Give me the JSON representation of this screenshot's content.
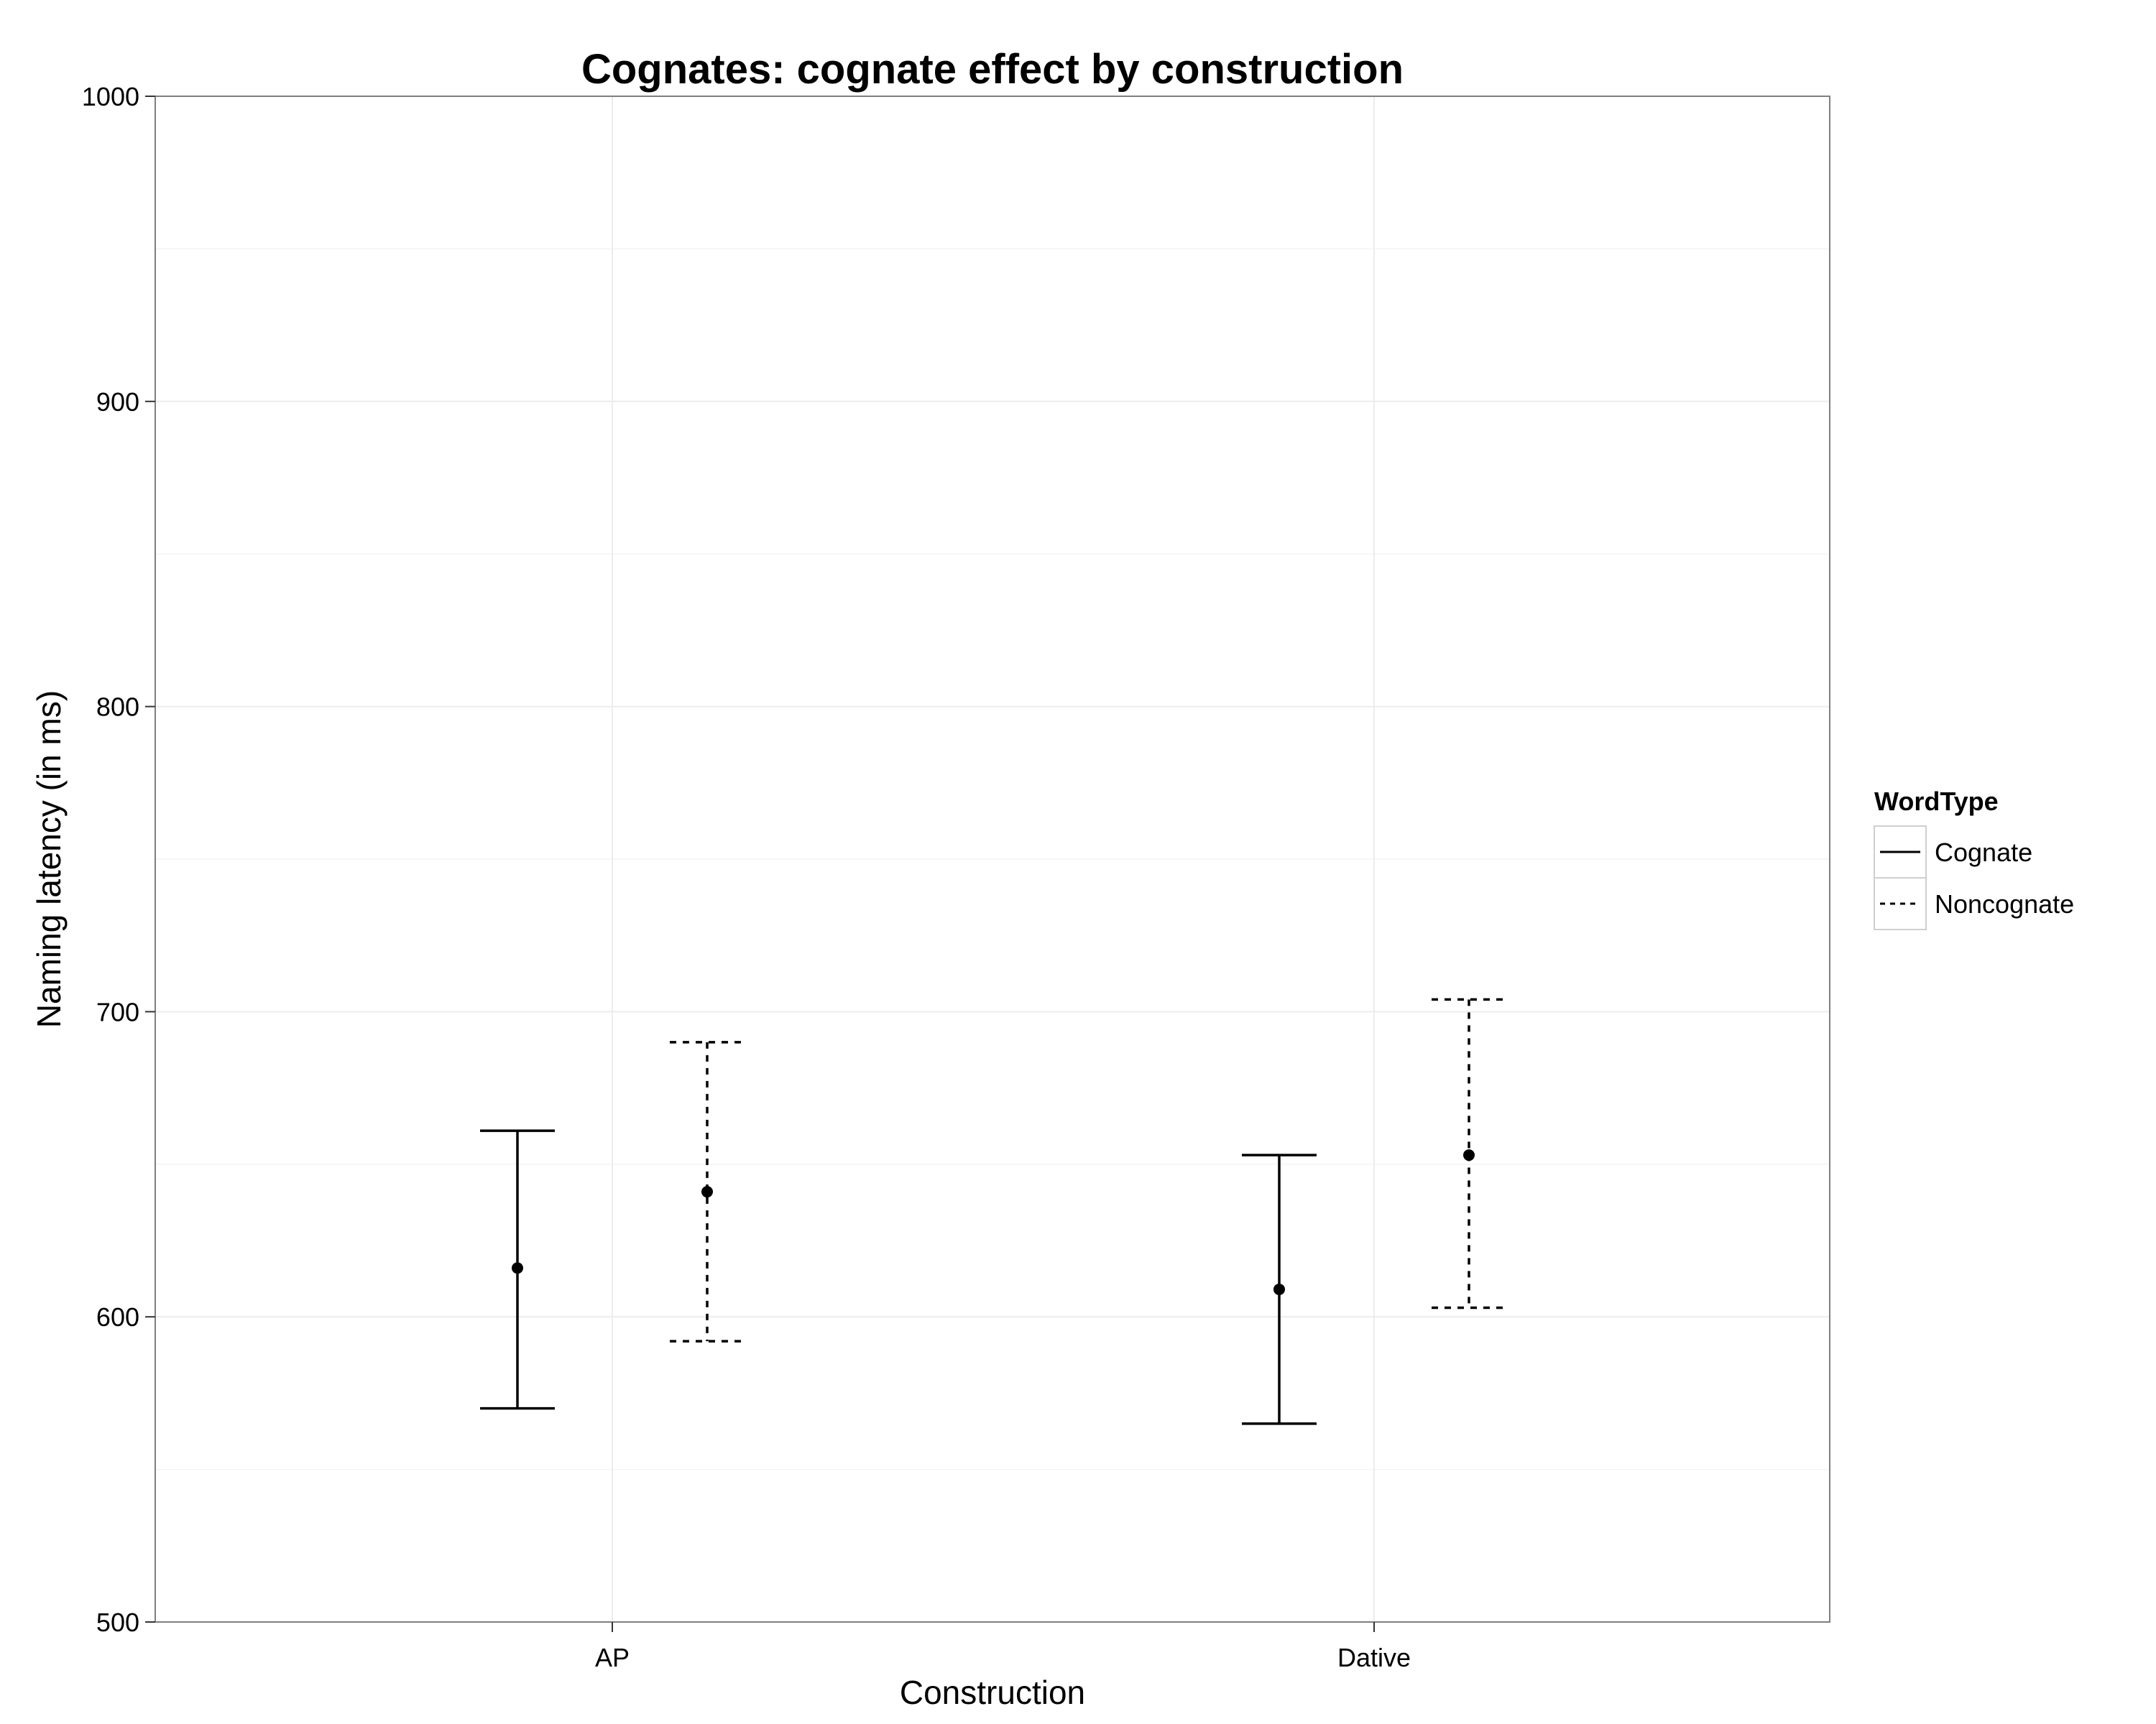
{
  "chart_data": {
    "type": "errorbar",
    "title": "Cognates: cognate effect by construction",
    "xlabel": "Construction",
    "ylabel": "Naming latency (in ms)",
    "categories": [
      "AP",
      "Dative"
    ],
    "ylim": [
      500,
      1000
    ],
    "yticks": [
      500,
      600,
      700,
      800,
      900,
      1000
    ],
    "grid": true,
    "legend": {
      "title": "WordType",
      "placement": "right"
    },
    "series": [
      {
        "name": "Cognate",
        "linestyle": "solid",
        "points": [
          {
            "category": "AP",
            "mean": 616,
            "lower": 570,
            "upper": 661
          },
          {
            "category": "Dative",
            "mean": 609,
            "lower": 565,
            "upper": 653
          }
        ]
      },
      {
        "name": "Noncognate",
        "linestyle": "dashed",
        "points": [
          {
            "category": "AP",
            "mean": 641,
            "lower": 592,
            "upper": 690
          },
          {
            "category": "Dative",
            "mean": 653,
            "lower": 603,
            "upper": 704
          }
        ]
      }
    ]
  }
}
